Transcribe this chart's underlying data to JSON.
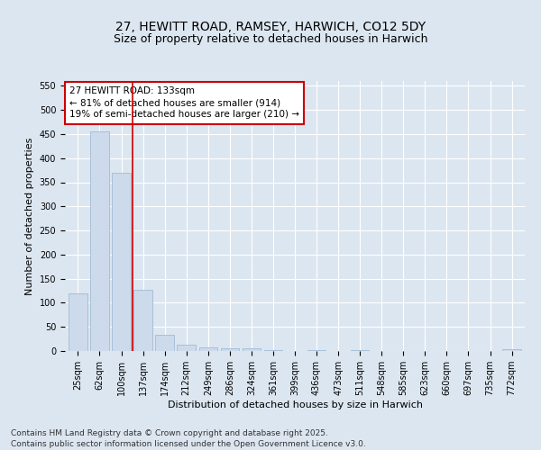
{
  "title1": "27, HEWITT ROAD, RAMSEY, HARWICH, CO12 5DY",
  "title2": "Size of property relative to detached houses in Harwich",
  "xlabel": "Distribution of detached houses by size in Harwich",
  "ylabel": "Number of detached properties",
  "categories": [
    "25sqm",
    "62sqm",
    "100sqm",
    "137sqm",
    "174sqm",
    "212sqm",
    "249sqm",
    "286sqm",
    "324sqm",
    "361sqm",
    "399sqm",
    "436sqm",
    "473sqm",
    "511sqm",
    "548sqm",
    "585sqm",
    "623sqm",
    "660sqm",
    "697sqm",
    "735sqm",
    "772sqm"
  ],
  "values": [
    120,
    455,
    370,
    127,
    34,
    13,
    8,
    5,
    5,
    1,
    0,
    1,
    0,
    1,
    0,
    0,
    0,
    0,
    0,
    0,
    3
  ],
  "bar_color": "#cddaeb",
  "bar_edge_color": "#a0bad4",
  "vline_x": 2.5,
  "vline_color": "#cc0000",
  "annotation_title": "27 HEWITT ROAD: 133sqm",
  "annotation_line1": "← 81% of detached houses are smaller (914)",
  "annotation_line2": "19% of semi-detached houses are larger (210) →",
  "annotation_box_color": "#cc0000",
  "ylim": [
    0,
    560
  ],
  "yticks": [
    0,
    50,
    100,
    150,
    200,
    250,
    300,
    350,
    400,
    450,
    500,
    550
  ],
  "background_color": "#dce6f0",
  "plot_bg_color": "#dce6f0",
  "footer1": "Contains HM Land Registry data © Crown copyright and database right 2025.",
  "footer2": "Contains public sector information licensed under the Open Government Licence v3.0.",
  "title_fontsize": 10,
  "subtitle_fontsize": 9,
  "axis_label_fontsize": 8,
  "tick_fontsize": 7,
  "annotation_fontsize": 7.5,
  "footer_fontsize": 6.5
}
